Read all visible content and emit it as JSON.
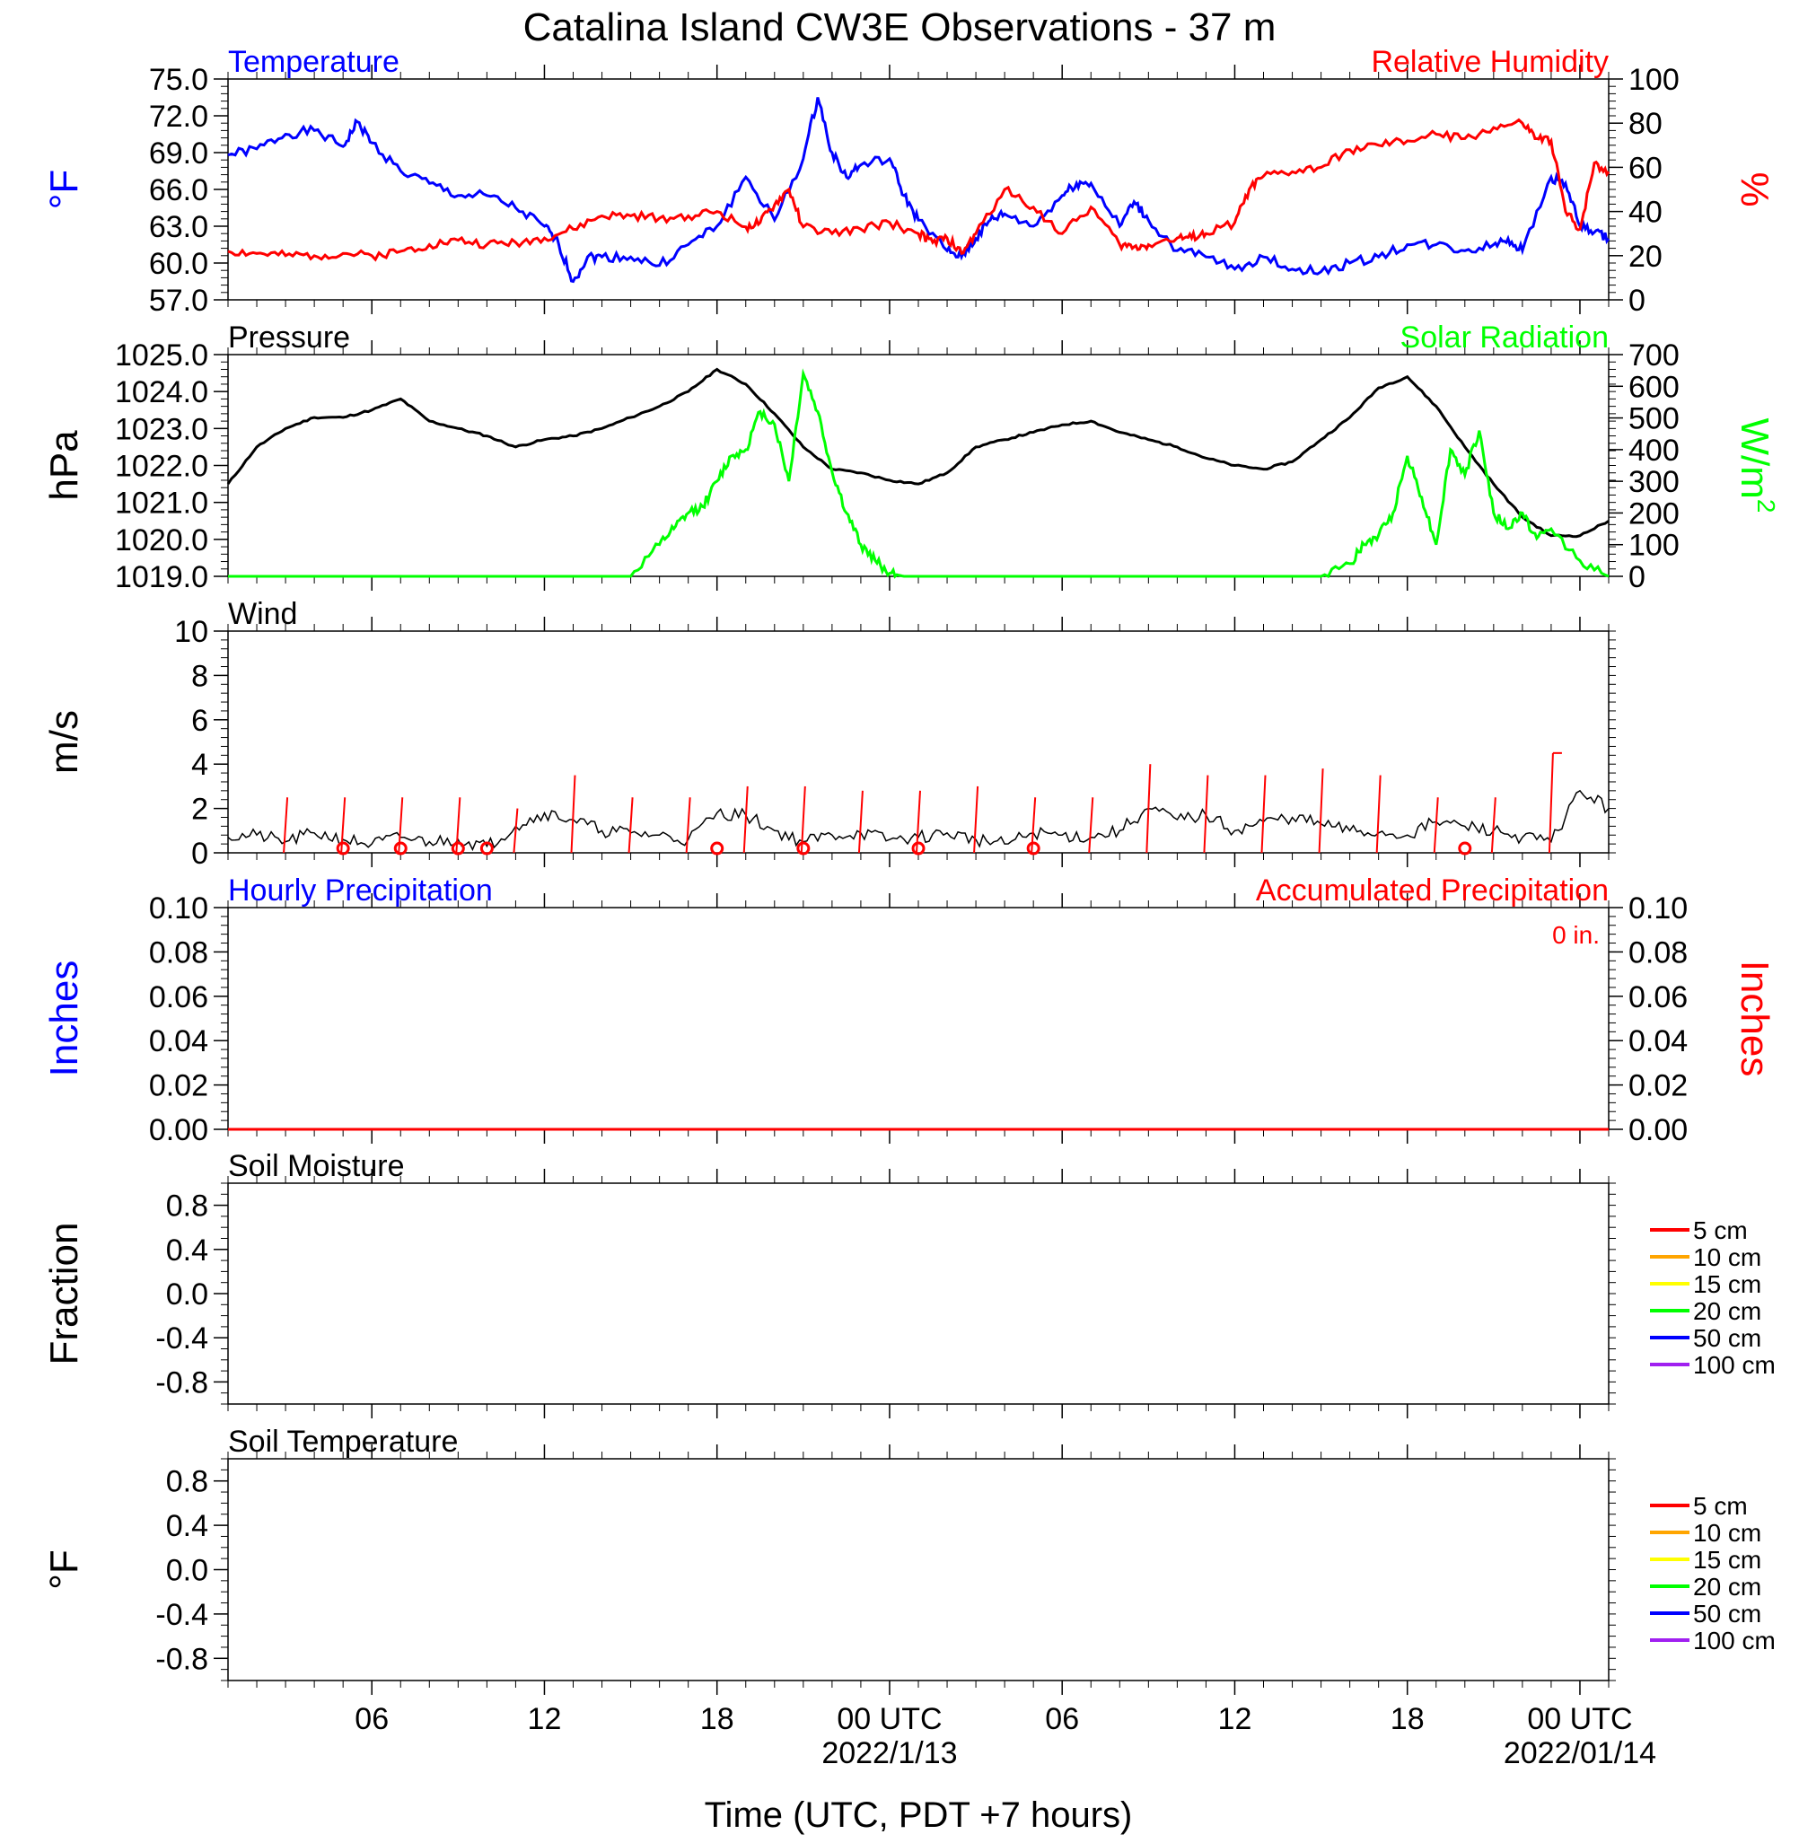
{
  "title": "Catalina Island CW3E Observations - 37 m",
  "x_axis": {
    "label": "Time (UTC, PDT +7 hours)",
    "ticks": [
      "06",
      "12",
      "18",
      "00 UTC",
      "06",
      "12",
      "18",
      "00 UTC"
    ],
    "dates": [
      "2022/1/13",
      "2022/01/14"
    ]
  },
  "colors": {
    "temperature": "#0000ff",
    "humidity": "#ff0000",
    "pressure": "#000000",
    "solar": "#00ff00",
    "wind": "#000000",
    "barb": "#ff0000",
    "soil_legend": [
      "#ff0000",
      "#ffa500",
      "#ffff00",
      "#00ff00",
      "#0000ff",
      "#a020f0"
    ]
  },
  "chart_data": [
    {
      "id": "temp_rh",
      "type": "line",
      "left_title": "Temperature",
      "right_title": "Relative Humidity",
      "left_unit": "°F",
      "right_unit": "%",
      "x_range_hours": [
        -23,
        25
      ],
      "left_ylim": [
        57,
        75
      ],
      "right_ylim": [
        0,
        100
      ],
      "left_ticks": [
        "75.0",
        "72.0",
        "69.0",
        "66.0",
        "63.0",
        "60.0",
        "57.0"
      ],
      "right_ticks": [
        "100",
        "80",
        "60",
        "40",
        "20",
        "0"
      ],
      "series": [
        {
          "name": "Temperature",
          "axis": "left",
          "x": [
            -23,
            -22,
            -21,
            -20,
            -19,
            -18.5,
            -18,
            -17,
            -16,
            -15,
            -14,
            -13,
            -12,
            -11.5,
            -11,
            -10.5,
            -10,
            -9,
            -8,
            -7,
            -6,
            -5,
            -4,
            -3,
            -2.5,
            -2,
            -1.5,
            -1,
            0,
            0.5,
            1,
            2,
            2.5,
            3,
            3.5,
            4,
            5,
            6,
            6.5,
            7,
            8,
            8.5,
            9,
            10,
            11,
            12,
            13,
            14,
            15,
            16,
            17,
            18,
            19,
            20,
            21,
            21.5,
            22,
            23,
            23.5,
            24,
            24.5,
            25
          ],
          "values": [
            68.8,
            69.3,
            70.5,
            70.8,
            69.5,
            71.5,
            69.8,
            67.5,
            66.5,
            65.5,
            65.5,
            64.5,
            63,
            61.5,
            58.5,
            60.5,
            60.5,
            60.5,
            59.8,
            61.5,
            63,
            67,
            63.5,
            68.5,
            73.5,
            69,
            67,
            68,
            68.5,
            65.5,
            63.5,
            61,
            60.5,
            62,
            63.5,
            64,
            63,
            65.5,
            66.5,
            66.5,
            63,
            65,
            63.5,
            61,
            60.5,
            59.5,
            60.5,
            59.5,
            59.3,
            60,
            60.5,
            61.5,
            61.5,
            61,
            61.5,
            62,
            61,
            67,
            66.5,
            63,
            62.5,
            62
          ]
        },
        {
          "name": "Relative Humidity",
          "axis": "right",
          "x": [
            -23,
            -22,
            -21,
            -20,
            -19,
            -18,
            -17,
            -16,
            -15,
            -14,
            -13,
            -12,
            -11,
            -10,
            -9,
            -8,
            -7,
            -6,
            -5,
            -4.5,
            -4,
            -3.5,
            -3,
            -2,
            -1,
            0,
            1,
            1.5,
            2,
            2.5,
            3,
            4,
            5,
            6,
            7,
            8,
            8.5,
            9,
            10,
            10.5,
            11,
            12,
            12.5,
            13,
            14,
            15,
            16,
            17,
            18,
            19,
            20,
            21,
            22,
            22.5,
            23,
            23.5,
            24,
            24.5,
            25
          ],
          "values": [
            22,
            21,
            20,
            20,
            21,
            20,
            22,
            25,
            27,
            25,
            26,
            28,
            32,
            38,
            38,
            37,
            38,
            40,
            33,
            35,
            43,
            50,
            33,
            30,
            32,
            35,
            30,
            26,
            28,
            21,
            30,
            50,
            42,
            30,
            42,
            25,
            24,
            25,
            28,
            28,
            30,
            35,
            50,
            56,
            58,
            60,
            68,
            70,
            72,
            75,
            73,
            78,
            80,
            73,
            72,
            40,
            32,
            62,
            58
          ]
        }
      ]
    },
    {
      "id": "pressure_solar",
      "type": "line",
      "left_title": "Pressure",
      "right_title": "Solar Radiation",
      "left_unit": "hPa",
      "right_unit": "W/m",
      "right_unit_sup": "2",
      "x_range_hours": [
        -23,
        25
      ],
      "left_ylim": [
        1019,
        1025
      ],
      "right_ylim": [
        0,
        700
      ],
      "left_ticks": [
        "1025.0",
        "1024.0",
        "1023.0",
        "1022.0",
        "1021.0",
        "1020.0",
        "1019.0"
      ],
      "right_ticks": [
        "700",
        "600",
        "500",
        "400",
        "300",
        "200",
        "100",
        "0"
      ],
      "series": [
        {
          "name": "Pressure",
          "axis": "left",
          "x": [
            -23,
            -22,
            -21,
            -20,
            -19,
            -18,
            -17,
            -16,
            -15,
            -14,
            -13,
            -12,
            -11,
            -10,
            -9,
            -8,
            -7,
            -6,
            -5,
            -4,
            -3,
            -2,
            -1,
            0,
            1,
            2,
            3,
            4,
            5,
            6,
            7,
            8,
            9,
            10,
            11,
            12,
            13,
            14,
            15,
            16,
            17,
            18,
            19,
            20,
            21,
            22,
            23,
            24,
            25
          ],
          "values": [
            1021.5,
            1022.5,
            1023,
            1023.3,
            1023.3,
            1023.5,
            1023.8,
            1023.2,
            1023,
            1022.8,
            1022.5,
            1022.7,
            1022.8,
            1023,
            1023.3,
            1023.6,
            1024,
            1024.6,
            1024.2,
            1023.4,
            1022.5,
            1021.9,
            1021.8,
            1021.6,
            1021.5,
            1021.8,
            1022.5,
            1022.7,
            1022.9,
            1023.1,
            1023.2,
            1022.9,
            1022.7,
            1022.5,
            1022.2,
            1022,
            1021.9,
            1022.1,
            1022.7,
            1023.3,
            1024.1,
            1024.4,
            1023.6,
            1022.5,
            1021.5,
            1020.6,
            1020.1,
            1020.1,
            1020.5
          ]
        },
        {
          "name": "Solar Radiation",
          "axis": "right",
          "x": [
            -23,
            -9,
            -8,
            -7.5,
            -7,
            -6.5,
            -6,
            -5.5,
            -5,
            -4.5,
            -4,
            -3.5,
            -3,
            -2.5,
            -2,
            -1.5,
            -1,
            -0.5,
            0,
            0.5,
            1,
            15,
            16,
            16.5,
            17,
            17.5,
            18,
            18.5,
            19,
            19.5,
            20,
            20.5,
            21,
            21.5,
            22,
            22.5,
            23,
            24,
            25
          ],
          "values": [
            0,
            0,
            100,
            150,
            200,
            220,
            300,
            380,
            400,
            520,
            480,
            300,
            640,
            520,
            330,
            200,
            100,
            50,
            10,
            0,
            0,
            0,
            40,
            100,
            130,
            200,
            380,
            250,
            100,
            400,
            320,
            460,
            200,
            150,
            200,
            120,
            150,
            50,
            0
          ]
        }
      ]
    },
    {
      "id": "wind",
      "type": "line",
      "left_title": "Wind",
      "left_unit": "m/s",
      "x_range_hours": [
        -23,
        25
      ],
      "left_ylim": [
        0,
        10
      ],
      "left_ticks": [
        "10",
        "8",
        "6",
        "4",
        "2",
        "0"
      ],
      "series": [
        {
          "name": "Wind",
          "axis": "left",
          "x": [
            -23,
            -22,
            -21,
            -20,
            -19,
            -18,
            -17,
            -16,
            -15,
            -14,
            -13,
            -12,
            -11,
            -10,
            -9,
            -8,
            -7,
            -6,
            -5,
            -4,
            -3,
            -2,
            -1,
            0,
            1,
            2,
            3,
            4,
            5,
            6,
            7,
            8,
            9,
            10,
            11,
            12,
            13,
            14,
            15,
            16,
            17,
            18,
            19,
            20,
            21,
            22,
            23,
            24,
            25
          ],
          "values": [
            0.7,
            0.8,
            0.5,
            0.9,
            0.6,
            0.4,
            0.7,
            0.5,
            0.6,
            0.3,
            1.2,
            1.8,
            1.5,
            1.0,
            0.9,
            0.8,
            0.6,
            1.8,
            1.7,
            1.0,
            0.5,
            0.8,
            0.9,
            0.6,
            0.7,
            0.9,
            0.6,
            0.4,
            0.9,
            0.8,
            0.7,
            1.0,
            2.0,
            1.5,
            1.7,
            1.0,
            1.4,
            1.6,
            1.3,
            1.0,
            0.9,
            0.8,
            1.4,
            1.2,
            1.0,
            0.7,
            0.5,
            2.8,
            2.0
          ]
        }
      ],
      "barbs": {
        "x": [
          -21,
          -19,
          -17,
          -15,
          -13,
          -11,
          -9,
          -7,
          -5,
          -3,
          -1,
          1,
          3,
          5,
          7,
          9,
          11,
          13,
          15,
          17,
          19,
          21,
          23
        ],
        "values": [
          2.5,
          2.5,
          2.5,
          2.5,
          2,
          3.5,
          2.5,
          2.5,
          3,
          3,
          2.8,
          2.8,
          3,
          2.5,
          2.5,
          4,
          3.5,
          3.5,
          3.8,
          3.5,
          2.5,
          2.5,
          4.5
        ]
      },
      "calm_circles_x": [
        -19,
        -17,
        -15,
        -14,
        -6,
        -3,
        1,
        5,
        20
      ]
    },
    {
      "id": "precip",
      "type": "line",
      "left_title": "Hourly Precipitation",
      "right_title": "Accumulated Precipitation",
      "left_unit": "Inches",
      "right_unit": "Inches",
      "annotation": "0 in.",
      "x_range_hours": [
        -23,
        25
      ],
      "left_ylim": [
        0,
        0.1
      ],
      "right_ylim": [
        0,
        0.1
      ],
      "left_ticks": [
        "0.10",
        "0.08",
        "0.06",
        "0.04",
        "0.02",
        "0.00"
      ],
      "right_ticks": [
        "0.10",
        "0.08",
        "0.06",
        "0.04",
        "0.02",
        "0.00"
      ],
      "series": [
        {
          "name": "Hourly Precipitation",
          "axis": "left",
          "x": [
            -23,
            25
          ],
          "values": [
            0,
            0
          ]
        },
        {
          "name": "Accumulated Precipitation",
          "axis": "right",
          "x": [
            -23,
            25
          ],
          "values": [
            0,
            0
          ]
        }
      ]
    },
    {
      "id": "soil_moisture",
      "type": "line",
      "left_title": "Soil Moisture",
      "left_unit": "Fraction",
      "x_range_hours": [
        -23,
        25
      ],
      "left_ylim": [
        -1,
        1
      ],
      "left_ticks": [
        "0.8",
        "0.4",
        "0.0",
        "-0.4",
        "-0.8"
      ],
      "legend": [
        "5 cm",
        "10 cm",
        "15 cm",
        "20 cm",
        "50 cm",
        "100 cm"
      ],
      "series": []
    },
    {
      "id": "soil_temperature",
      "type": "line",
      "left_title": "Soil Temperature",
      "left_unit": "°F",
      "x_range_hours": [
        -23,
        25
      ],
      "left_ylim": [
        -1,
        1
      ],
      "left_ticks": [
        "0.8",
        "0.4",
        "0.0",
        "-0.4",
        "-0.8"
      ],
      "legend": [
        "5 cm",
        "10 cm",
        "15 cm",
        "20 cm",
        "50 cm",
        "100 cm"
      ],
      "series": []
    }
  ]
}
